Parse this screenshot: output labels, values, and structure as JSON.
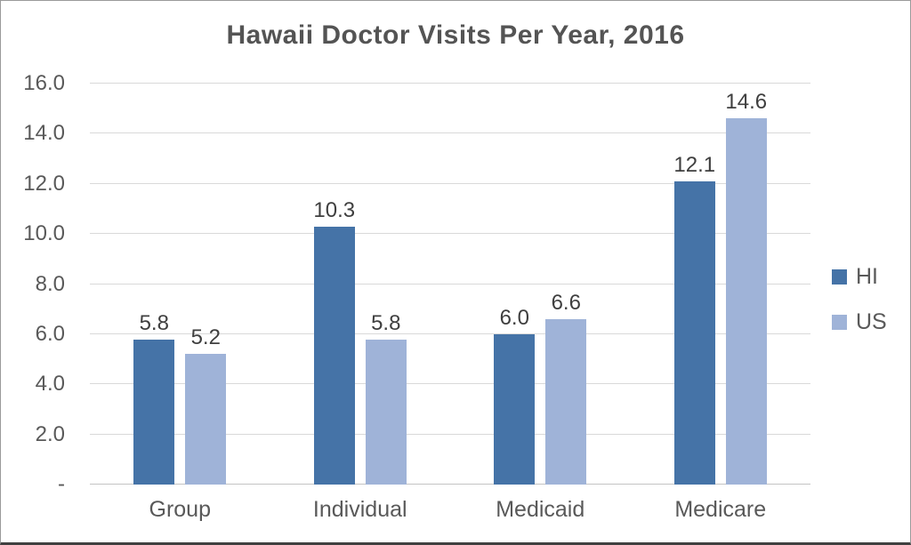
{
  "title": "Hawaii Doctor Visits Per Year, 2016",
  "chart_data": {
    "type": "bar",
    "title": "Hawaii Doctor Visits Per Year, 2016",
    "categories": [
      "Group",
      "Individual",
      "Medicaid",
      "Medicare"
    ],
    "series": [
      {
        "name": "HI",
        "color": "#4573a7",
        "values": [
          5.8,
          10.3,
          6.0,
          12.1
        ]
      },
      {
        "name": "US",
        "color": "#9fb3d8",
        "values": [
          5.2,
          5.8,
          6.6,
          14.6
        ]
      }
    ],
    "xlabel": "",
    "ylabel": "",
    "ylim": [
      0,
      16
    ],
    "ytick_step": 2,
    "ytick_labels": [
      "-",
      "2.0",
      "4.0",
      "6.0",
      "8.0",
      "10.0",
      "12.0",
      "14.0",
      "16.0"
    ],
    "value_label_format": "1dp",
    "grid": true,
    "legend_position": "right"
  },
  "colors": {
    "hi_series": "#4573a7",
    "us_series": "#9fb3d8",
    "gridline": "#d9d9d9",
    "axis_line": "#c3c3c3",
    "title_text": "#545454",
    "axis_text": "#595959",
    "value_text": "#3f3f3f"
  }
}
